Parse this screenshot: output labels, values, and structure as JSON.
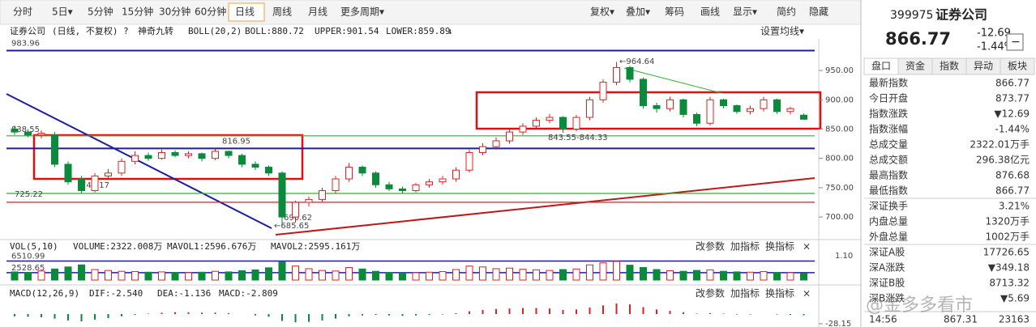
{
  "toolbar": {
    "items": [
      "分时",
      "5日▾",
      "5分钟",
      "15分钟",
      "30分钟",
      "60分钟",
      "日线",
      "周线",
      "月线",
      "更多周期▾",
      "复权▾",
      "叠加▾",
      "筹码",
      "画线",
      "显示▾",
      "简约",
      "隐藏"
    ],
    "active": "日线"
  },
  "chart_header": {
    "items": [
      "证券公司",
      "(日线, 不复权)",
      "?",
      "神奇九转",
      "BOLL(20,2)",
      "BOLL:880.72",
      "UPPER:901.54",
      "LOWER:859.89",
      "↓"
    ],
    "settings": "设置均线▾"
  },
  "chart_data": [
    {
      "type": "candlestick",
      "open": [
        850,
        845,
        840,
        840,
        790,
        765,
        745,
        770,
        775,
        795,
        805,
        800,
        810,
        805,
        808,
        800,
        812,
        805,
        790,
        785,
        775,
        700,
        725,
        730,
        745,
        765,
        785,
        775,
        755,
        748,
        745,
        755,
        760,
        765,
        780,
        810,
        820,
        830,
        845,
        855,
        865,
        870,
        850,
        870,
        900,
        930,
        955,
        935,
        890,
        885,
        900,
        875,
        860,
        900,
        890,
        880,
        885,
        900,
        880,
        873.77
      ],
      "close": [
        845,
        840,
        843,
        790,
        760,
        745,
        770,
        775,
        795,
        805,
        800,
        810,
        805,
        808,
        800,
        812,
        805,
        790,
        785,
        775,
        700,
        725,
        730,
        745,
        765,
        785,
        775,
        755,
        748,
        745,
        755,
        760,
        765,
        780,
        810,
        820,
        830,
        845,
        855,
        865,
        870,
        850,
        870,
        900,
        930,
        955,
        935,
        890,
        885,
        900,
        875,
        860,
        900,
        890,
        880,
        885,
        900,
        880,
        885,
        866.77
      ],
      "high": [
        856,
        850,
        848,
        845,
        795,
        770,
        775,
        782,
        800,
        812,
        810,
        815,
        814,
        812,
        810,
        816.95,
        813,
        808,
        795,
        788,
        778,
        728,
        735,
        750,
        770,
        792,
        788,
        778,
        760,
        752,
        758,
        765,
        770,
        785,
        815,
        826,
        836,
        850,
        860,
        870,
        876,
        872,
        874,
        905,
        935,
        964.64,
        958,
        938,
        895,
        905,
        902,
        878,
        905,
        902,
        892,
        890,
        905,
        902,
        888,
        876.68
      ],
      "low": [
        840,
        836,
        834,
        785,
        755,
        740.17,
        742,
        766,
        770,
        790,
        796,
        798,
        802,
        800,
        795,
        797,
        800,
        785,
        780,
        770,
        685.65,
        690.62,
        718,
        726,
        740,
        760,
        770,
        750,
        744,
        740,
        742,
        750,
        755,
        760,
        776,
        805,
        815,
        825,
        840,
        850,
        860,
        843.55,
        846,
        865,
        895,
        925,
        930,
        885,
        878,
        880,
        870,
        855,
        856,
        885,
        876,
        875,
        880,
        876,
        875,
        866.77
      ],
      "ylim": [
        667,
        1004
      ],
      "yticks": [
        {
          "value": 700,
          "label": "700.00"
        },
        {
          "value": 750,
          "label": "750.00"
        },
        {
          "value": 800,
          "label": "800.00"
        },
        {
          "value": 850,
          "label": "850.00"
        },
        {
          "value": 900,
          "label": "900.00"
        },
        {
          "value": 950,
          "label": "950.00"
        }
      ],
      "up_color": "#e02020",
      "down_color": "#0a8a3a",
      "levels": [
        {
          "value": 983.96,
          "color": "#1c1ca6"
        },
        {
          "value": 838.55,
          "color": "#2cb52c"
        },
        {
          "value": 816.95,
          "color": "#1c1ca6"
        },
        {
          "value": 740.17,
          "color": "#2cb52c"
        },
        {
          "value": 725.22,
          "color": "#d42020"
        }
      ],
      "annotations": [
        "690.62",
        "←685.65",
        "←964.64",
        "843.55-844.33"
      ]
    },
    {
      "type": "bar",
      "header": [
        "VOL(5,10)",
        "VOLUME:2322.008万",
        "MAVOL1:2596.676万",
        "MAVOL2:2595.161万"
      ],
      "values": [
        2800,
        2600,
        3100,
        3800,
        4500,
        5200,
        3600,
        3300,
        3000,
        2900,
        2700,
        2800,
        2600,
        2500,
        2700,
        3000,
        2800,
        3200,
        3500,
        4200,
        6200,
        4800,
        3900,
        3300,
        3100,
        4300,
        3800,
        3000,
        2600,
        2400,
        2500,
        2700,
        2900,
        3600,
        4800,
        4500,
        3900,
        4100,
        3700,
        3500,
        3300,
        3600,
        3800,
        5200,
        5900,
        6400,
        5100,
        4300,
        3600,
        3200,
        3000,
        3300,
        3500,
        3000,
        2800,
        2700,
        2900,
        2600,
        2500,
        2322.008
      ],
      "ylim": [
        0,
        10000
      ],
      "yticks": [
        6510.99,
        2528.65
      ],
      "right_label": "1.10"
    },
    {
      "type": "macd",
      "header": [
        "MACD(12,26,9)",
        "DIF:-2.540",
        "DEA:-1.136",
        "MACD:-2.809"
      ],
      "values": [
        -5,
        -6,
        -7,
        -10,
        -14,
        -16,
        -12,
        -9,
        -5,
        -2,
        1,
        3,
        4,
        4,
        3,
        3,
        2,
        0,
        -3,
        -6,
        -15,
        -18,
        -17,
        -14,
        -10,
        -5,
        -3,
        -2,
        -3,
        -4,
        -3,
        -2,
        -1,
        2,
        6,
        9,
        11,
        12,
        13,
        13,
        12,
        9,
        10,
        14,
        19,
        23,
        21,
        15,
        10,
        7,
        4,
        1,
        2,
        1,
        -1,
        -1,
        0,
        -1,
        -2,
        -2.809
      ],
      "ylim": [
        -28.15,
        28.15
      ],
      "yticks": [
        -28.15
      ]
    }
  ],
  "panel_buttons": [
    "改参数",
    "加指标",
    "换指标",
    "×"
  ],
  "quote": {
    "code": "399975",
    "name": "证券公司",
    "price": "866.77",
    "change": "-12.69",
    "pct": "-1.44%",
    "collapse": "−",
    "tabs": [
      "盘口",
      "资金",
      "指数",
      "异动",
      "板块"
    ],
    "rows": [
      [
        "最新指数",
        "866.77"
      ],
      [
        "今日开盘",
        "873.77"
      ],
      [
        "指数涨跌",
        "▼12.69"
      ],
      [
        "指数涨幅",
        "-1.44%"
      ],
      [
        "总成交量",
        "2322.01万手"
      ],
      [
        "总成交额",
        "296.38亿元"
      ],
      [
        "最高指数",
        "876.68"
      ],
      [
        "最低指数",
        "866.77"
      ],
      [
        "深证换手",
        "3.21%"
      ],
      [
        "内盘总量",
        "1320万手"
      ],
      [
        "外盘总量",
        "1002万手"
      ],
      [
        "深证A股",
        "17726.65"
      ],
      [
        "深A涨跌",
        "▼349.18"
      ],
      [
        "深证B股",
        "8713.32"
      ],
      [
        "深B涨跌",
        "▼5.69"
      ]
    ],
    "tick": [
      "14:56",
      "867.31",
      "23163"
    ]
  },
  "watermark": "@金多多看市"
}
